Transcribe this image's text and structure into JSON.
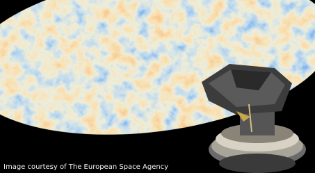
{
  "caption": "Image courtesy of The European Space Agency"
}
